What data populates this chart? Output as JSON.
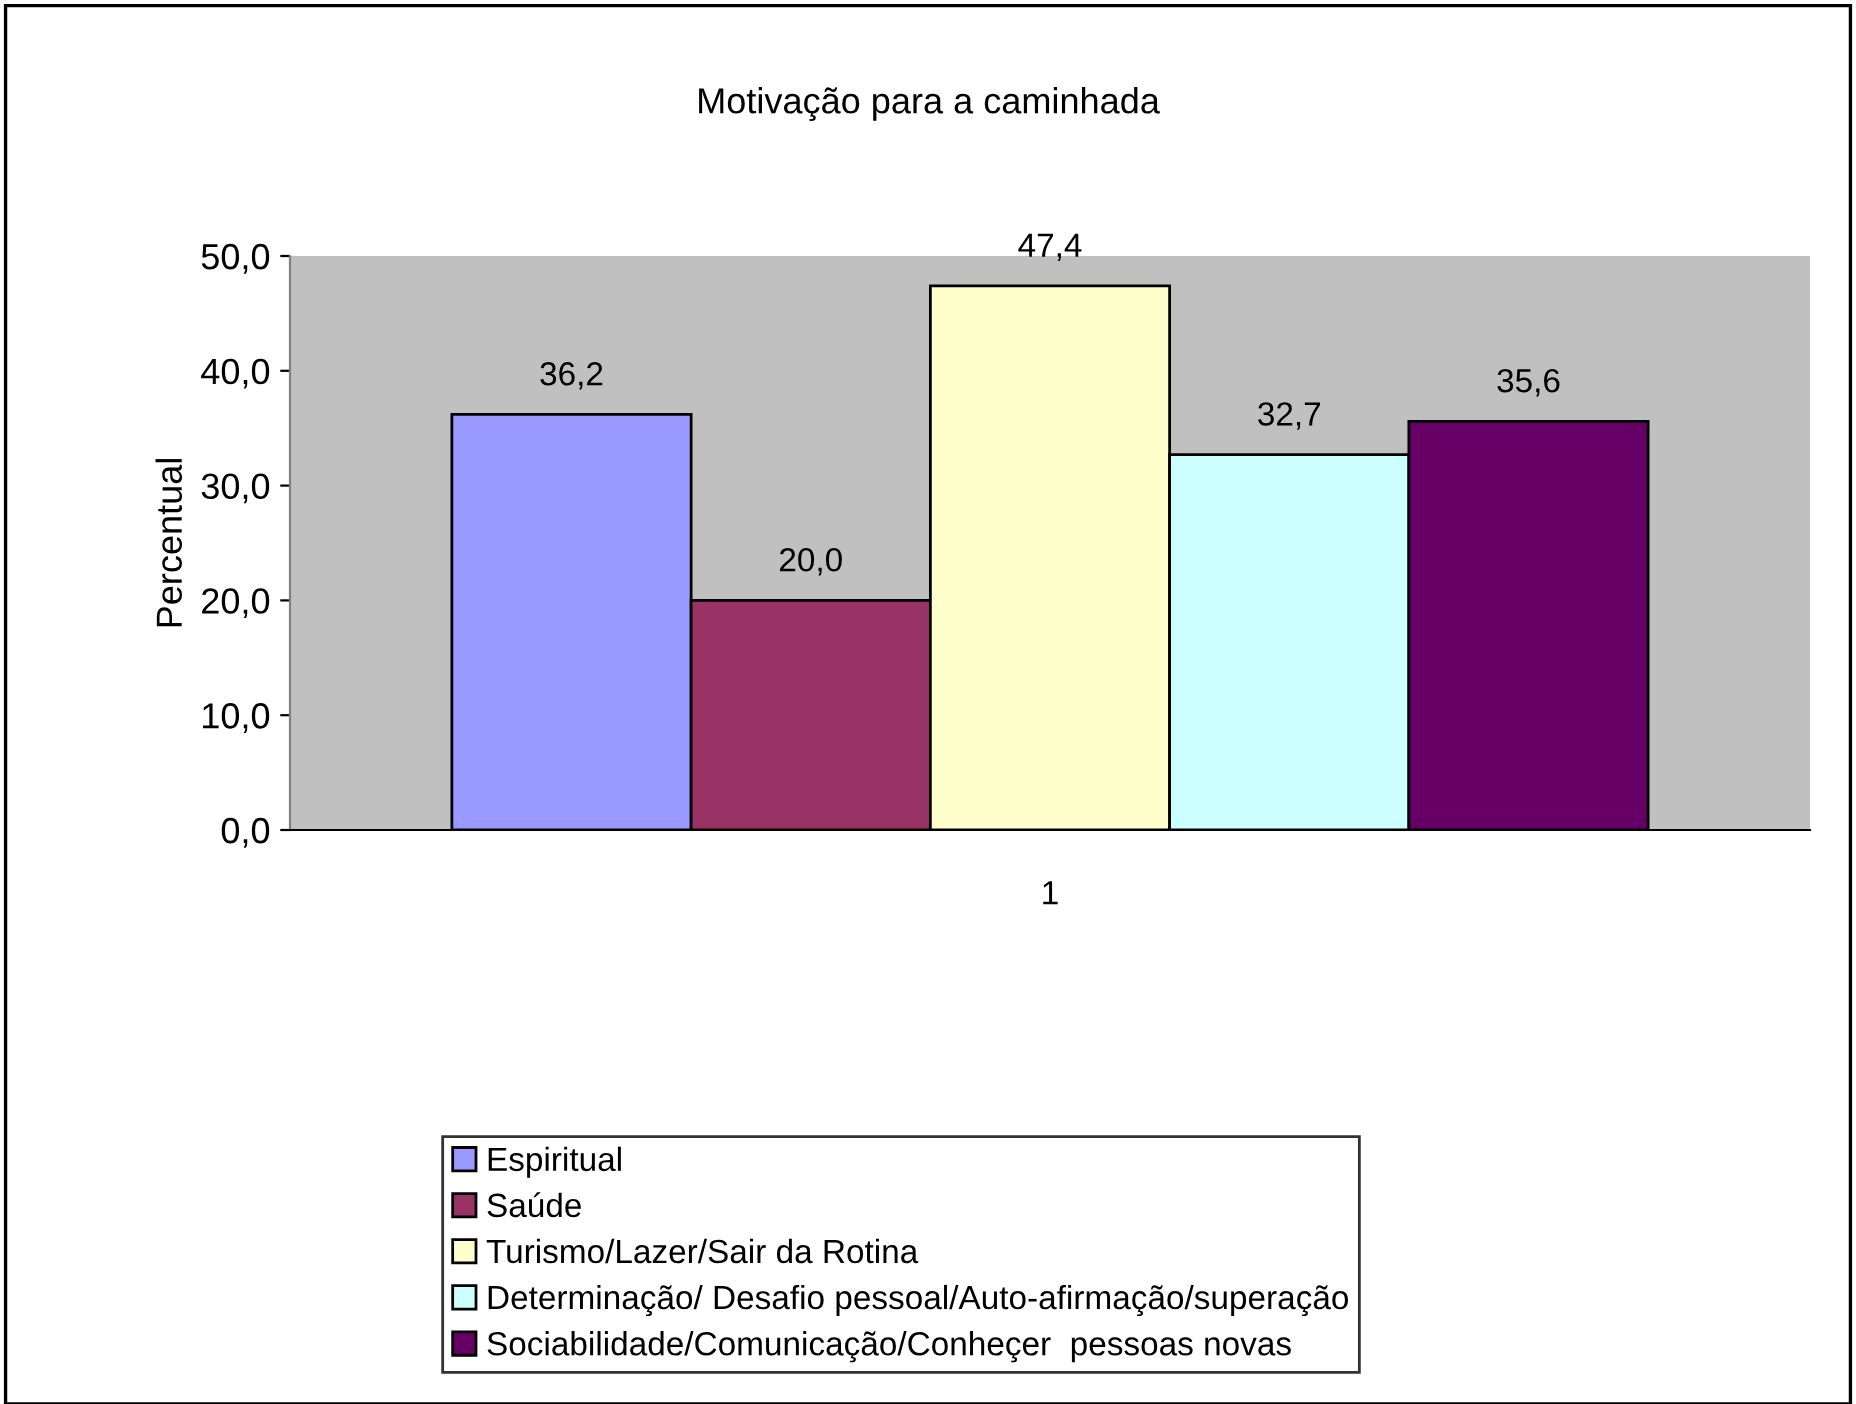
{
  "chart_data": {
    "type": "bar",
    "title": "Motivação para a caminhada",
    "ylabel": "Percentual",
    "categories": [
      "1"
    ],
    "series": [
      {
        "name": "Espiritual",
        "color": "#9999ff",
        "values": [
          36.2
        ],
        "value_labels": [
          "36,2"
        ]
      },
      {
        "name": "Saúde",
        "color": "#993366",
        "values": [
          20.0
        ],
        "value_labels": [
          "20,0"
        ]
      },
      {
        "name": "Turismo/Lazer/Sair da Rotina",
        "color": "#ffffcc",
        "values": [
          47.4
        ],
        "value_labels": [
          "47,4"
        ]
      },
      {
        "name": "Determinação/ Desafio pessoal/Auto-afirmação/superação",
        "color": "#ccffff",
        "values": [
          32.7
        ],
        "value_labels": [
          "32,7"
        ]
      },
      {
        "name": "Sociabilidade/Comunicação/Conheçer  pessoas novas",
        "color": "#660066",
        "values": [
          35.6
        ],
        "value_labels": [
          "35,6"
        ]
      }
    ],
    "ylim": [
      0,
      50
    ],
    "yticks": [
      {
        "value": 0,
        "label": "0,0"
      },
      {
        "value": 10,
        "label": "10,0"
      },
      {
        "value": 20,
        "label": "20,0"
      },
      {
        "value": 30,
        "label": "30,0"
      },
      {
        "value": 40,
        "label": "40,0"
      },
      {
        "value": 50,
        "label": "50,0"
      }
    ],
    "grid": false,
    "legend": "bottom"
  }
}
